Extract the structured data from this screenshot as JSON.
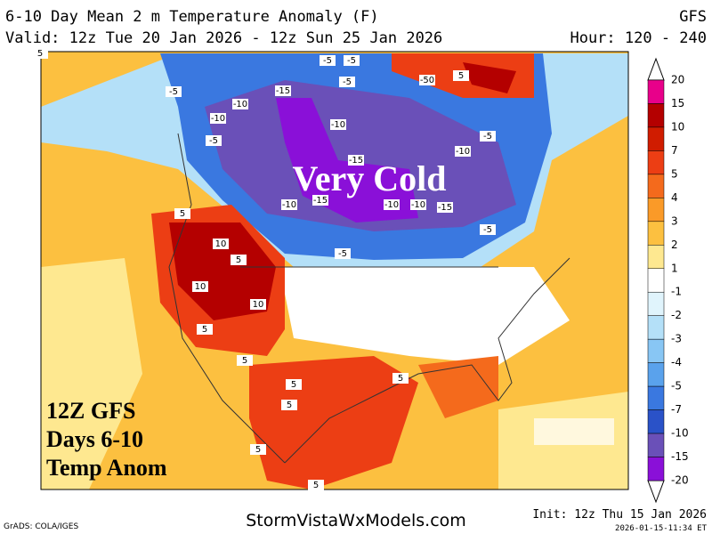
{
  "header": {
    "title": "6-10 Day Mean 2 m Temperature Anomaly (F)",
    "model": "GFS",
    "valid": "Valid: 12z Tue 20 Jan 2026 - 12z Sun 25 Jan 2026",
    "hours": "Hour: 120 - 240"
  },
  "map": {
    "annotation": "Very Cold",
    "caption": [
      "12Z GFS",
      "Days 6-10",
      "Temp Anom"
    ],
    "contour_labels": [
      -5,
      -5,
      -10,
      -15,
      -10,
      -5,
      -5,
      -10,
      -15,
      -10,
      -5,
      -50,
      5,
      -5,
      -10,
      -15,
      -10,
      -10,
      -15,
      -5,
      -5,
      5,
      10,
      5,
      10,
      10,
      5,
      5,
      5,
      5,
      5,
      5,
      5,
      5
    ]
  },
  "legend": {
    "levels": [
      20,
      15,
      10,
      7,
      5,
      4,
      3,
      2,
      1,
      -1,
      -2,
      -3,
      -4,
      -5,
      -7,
      -10,
      -15,
      -20
    ],
    "colors": [
      "#e8008a",
      "#b40000",
      "#d01c00",
      "#ec3e14",
      "#f46a1c",
      "#fa9a28",
      "#fcc040",
      "#fee890",
      "#ffffff",
      "#e0f4fc",
      "#b4e0f8",
      "#88c6f4",
      "#5aa2ec",
      "#3a78e0",
      "#2a52c8",
      "#6a50b8",
      "#8a10d8"
    ]
  },
  "footer": {
    "credit": "GrADS: COLA/IGES",
    "site": "StormVistaWxModels.com",
    "init": "Init: 12z Thu 15 Jan 2026",
    "stamp": "2026-01-15-11:34 ET"
  }
}
